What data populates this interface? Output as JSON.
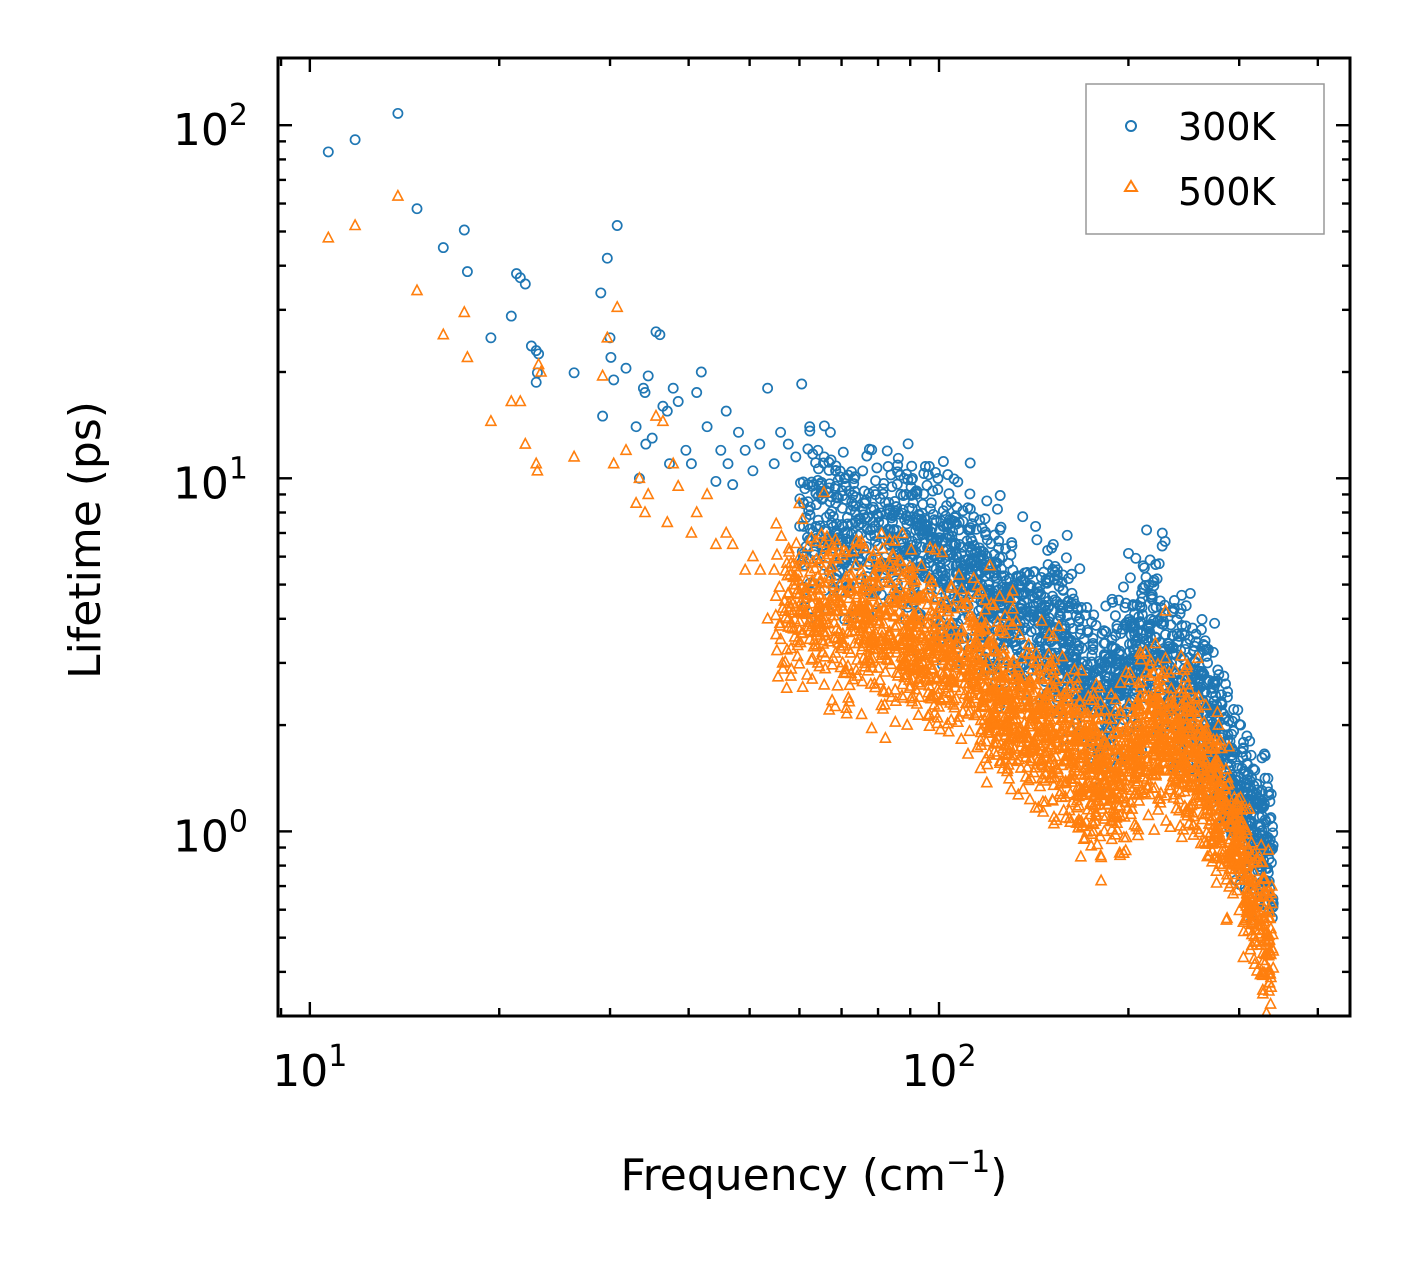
{
  "chart_data": {
    "type": "scatter",
    "title": "",
    "xlabel": "Frequency (cm",
    "xlabel_sup": "−1",
    "xlabel_end": ")",
    "ylabel": "Lifetime (ps)",
    "xscale": "log",
    "yscale": "log",
    "xlim": [
      8.9,
      450
    ],
    "ylim": [
      0.3,
      155
    ],
    "x_ticks": [
      {
        "base": "10",
        "exp": "1",
        "value": 10
      },
      {
        "base": "10",
        "exp": "2",
        "value": 100
      }
    ],
    "y_ticks": [
      {
        "base": "10",
        "exp": "0",
        "value": 1
      },
      {
        "base": "10",
        "exp": "1",
        "value": 10
      },
      {
        "base": "10",
        "exp": "2",
        "value": 100
      }
    ],
    "legend_position": "top-right",
    "series": [
      {
        "name": "300K",
        "color": "#1f77b4",
        "marker": "circle",
        "x": [
          10.7,
          11.8,
          13.8,
          14.8,
          16.3,
          17.6,
          17.8,
          19.4,
          20.9,
          21.3,
          21.6,
          22.0,
          22.5,
          22.9,
          22.9,
          23.0,
          23.1,
          26.3,
          29.0,
          29.2,
          29.7,
          30.0,
          30.1,
          30.4,
          30.8,
          31.8,
          33.0,
          33.4,
          33.9,
          34.1,
          34.2,
          34.5,
          35.0,
          35.5,
          36.0,
          36.4,
          37.0,
          37.3,
          37.8,
          38.5,
          39.6,
          40.4,
          41.2,
          41.9,
          42.8,
          44.2,
          45.0,
          45.9,
          46.2,
          47.0,
          48.0,
          49.2,
          50.6,
          51.9,
          53.4,
          54.7,
          56.0,
          57.6,
          59.2,
          60.5,
          62.3,
          64.2,
          65.7,
          67.2,
          68.5,
          83.0,
          88.0,
          96.5
        ],
        "y": [
          84.0,
          91.0,
          108.0,
          58.0,
          45.0,
          50.5,
          38.5,
          25.0,
          28.8,
          38.0,
          37.0,
          35.5,
          23.7,
          18.7,
          23.0,
          19.9,
          22.5,
          19.9,
          33.5,
          15.0,
          42.0,
          25.0,
          22.0,
          19.0,
          52.0,
          20.5,
          14.0,
          10.0,
          18.0,
          17.5,
          12.5,
          19.5,
          13.0,
          26.0,
          25.5,
          16.0,
          15.5,
          11.0,
          18.0,
          16.5,
          12.0,
          11.0,
          17.5,
          20.0,
          14.0,
          9.8,
          12.0,
          15.5,
          11.0,
          9.6,
          13.5,
          12.0,
          10.5,
          12.5,
          18.0,
          11.0,
          13.5,
          12.5,
          11.5,
          18.5,
          14.0,
          12.0,
          11.5,
          13.5,
          10.5,
          10.8,
          10.0,
          10.8
        ]
      },
      {
        "name": "500K",
        "color": "#ff7f0e",
        "marker": "triangle",
        "x": [
          10.7,
          11.8,
          13.8,
          14.8,
          16.3,
          17.6,
          17.8,
          19.4,
          20.9,
          21.6,
          22.0,
          22.9,
          23.0,
          23.1,
          23.3,
          26.3,
          29.2,
          29.7,
          30.4,
          30.8,
          31.8,
          33.0,
          33.4,
          34.1,
          34.5,
          35.5,
          36.4,
          37.0,
          37.8,
          38.5,
          40.4,
          41.2,
          42.8,
          44.2,
          45.9,
          47.0,
          49.2,
          50.6,
          52.0,
          53.4,
          54.7,
          56.0,
          57.6,
          59.2,
          62.3,
          64.2,
          65.7,
          67.2,
          68.5,
          72.5,
          78.0,
          84.0,
          89.0
        ],
        "y": [
          48.0,
          52.0,
          63.0,
          34.0,
          25.5,
          29.5,
          22.0,
          14.5,
          16.5,
          16.5,
          12.5,
          11.0,
          10.5,
          21.0,
          20.0,
          11.5,
          19.5,
          25.0,
          11.0,
          30.5,
          12.0,
          8.5,
          10.0,
          8.0,
          9.0,
          15.0,
          14.5,
          7.5,
          11.0,
          9.5,
          7.0,
          8.0,
          9.0,
          6.5,
          7.0,
          6.5,
          5.5,
          6.0,
          5.5,
          4.0,
          5.5,
          3.5,
          4.0,
          5.0,
          3.5,
          3.0,
          2.6,
          4.5,
          3.2,
          2.8,
          3.0,
          2.4,
          2.0
        ]
      }
    ],
    "dense_clouds": [
      {
        "series": 0,
        "x_from": 60,
        "x_to": 340,
        "y_center_log": [
          [
            60,
            7.6
          ],
          [
            80,
            6.9
          ],
          [
            100,
            6.0
          ],
          [
            120,
            4.7
          ],
          [
            140,
            3.9
          ],
          [
            160,
            3.3
          ],
          [
            180,
            2.4
          ],
          [
            200,
            3.0
          ],
          [
            220,
            3.6
          ],
          [
            240,
            2.8
          ],
          [
            270,
            2.2
          ],
          [
            300,
            1.3
          ],
          [
            340,
            0.8
          ]
        ],
        "spread": 0.26,
        "count": 2200
      },
      {
        "series": 1,
        "x_from": 55,
        "x_to": 340,
        "y_center_log": [
          [
            55,
            4.7
          ],
          [
            70,
            4.1
          ],
          [
            90,
            3.6
          ],
          [
            110,
            3.0
          ],
          [
            130,
            2.3
          ],
          [
            150,
            2.0
          ],
          [
            170,
            1.6
          ],
          [
            190,
            1.35
          ],
          [
            210,
            1.9
          ],
          [
            230,
            1.9
          ],
          [
            260,
            1.5
          ],
          [
            290,
            1.0
          ],
          [
            320,
            0.6
          ],
          [
            340,
            0.45
          ]
        ],
        "spread": 0.26,
        "count": 2600
      }
    ]
  }
}
